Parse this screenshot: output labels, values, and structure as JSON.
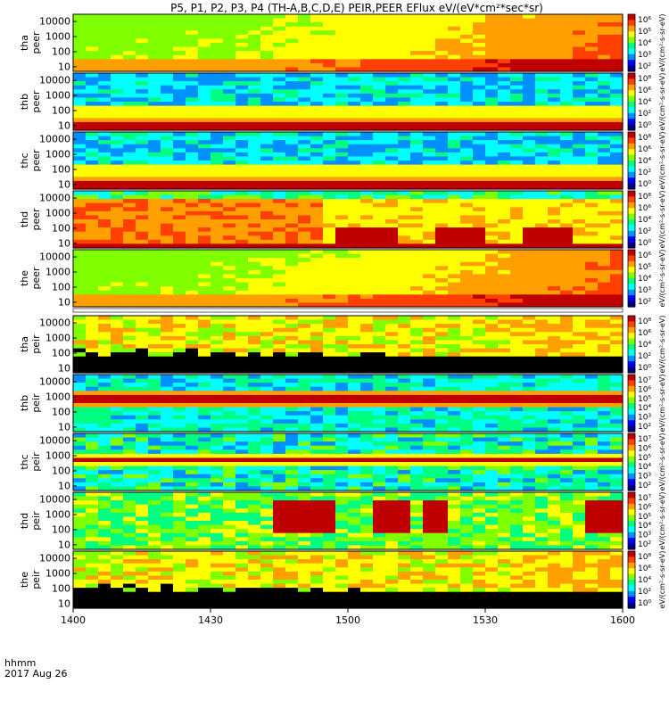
{
  "title": "P5, P1, P2, P3, P4 (TH-A,B,C,D,E) PEIR,PEER EFlux eV/(eV*cm²*sec*sr)",
  "colors": {
    "colormap": [
      "#000080",
      "#0000ff",
      "#0090ff",
      "#00ffff",
      "#00ff80",
      "#80ff00",
      "#ffff00",
      "#ffa000",
      "#ff4000",
      "#c00000"
    ],
    "background": "#ffffff",
    "frame": "#000000"
  },
  "chart_data": {
    "type": "heatmap",
    "title": "P5, P1, P2, P3, P4 (TH-A,B,C,D,E) PEIR,PEER EFlux eV/(eV*cm²*sec*sr)",
    "x_axis": {
      "ticks": [
        "1400",
        "1430",
        "1500",
        "1530",
        "1600"
      ],
      "label_line1": "hhmm",
      "label_line2": "2017 Aug 26",
      "range": [
        "14:00",
        "16:00"
      ]
    },
    "y_axis": {
      "scale": "log",
      "unit": "eV",
      "range": [
        5,
        30000
      ]
    },
    "colorbar_unit": "eV/(cm^2-s-sr-eV)",
    "panels": [
      {
        "id": "tha-peer",
        "line1": "tha",
        "line2": "peer",
        "ticks": [
          "10000",
          "1000",
          "100",
          "10"
        ],
        "cbar_ticks": [
          "10⁶",
          "10⁵",
          "10⁴",
          "10³",
          "10²"
        ],
        "cbar_range": [
          2,
          6.5
        ],
        "cbar_label": "eV/(cm²-s-sr-eV)",
        "style": "ecool"
      },
      {
        "id": "thb-peer",
        "line1": "thb",
        "line2": "peer",
        "ticks": [
          "10000",
          "1000",
          "100",
          "10"
        ],
        "cbar_ticks": [
          "10⁸",
          "10⁶",
          "10⁴",
          "10²",
          "10⁰"
        ],
        "cbar_range": [
          0,
          8
        ],
        "cbar_label": "eV/(cm²-s-sr-eV)",
        "style": "eband"
      },
      {
        "id": "thc-peer",
        "line1": "thc",
        "line2": "peer",
        "ticks": [
          "10000",
          "1000",
          "100",
          "10"
        ],
        "cbar_ticks": [
          "10⁸",
          "10⁶",
          "10⁴",
          "10²",
          "10⁰"
        ],
        "cbar_range": [
          0,
          8
        ],
        "cbar_label": "eV/(cm²-s-sr-eV)",
        "style": "eband"
      },
      {
        "id": "thd-peer",
        "line1": "thd",
        "line2": "peer",
        "ticks": [
          "10000",
          "1000",
          "100",
          "10"
        ],
        "cbar_ticks": [
          "10⁸",
          "10⁶",
          "10⁴",
          "10²",
          "10⁰"
        ],
        "cbar_range": [
          0,
          8
        ],
        "cbar_label": "eV/(cm²-s-sr-eV)",
        "style": "epatch"
      },
      {
        "id": "the-peer",
        "line1": "the",
        "line2": "peer",
        "ticks": [
          "10000",
          "1000",
          "100",
          "10"
        ],
        "cbar_ticks": [
          "10⁶",
          "10⁵",
          "10⁴",
          "10³",
          "10²"
        ],
        "cbar_range": [
          2,
          6.5
        ],
        "cbar_label": "eV/(cm²-s-sr-eV)",
        "style": "ecool"
      },
      {
        "id": "tha-peir",
        "line1": "tha",
        "line2": "peir",
        "ticks": [
          "10000",
          "1000",
          "100",
          "10"
        ],
        "cbar_ticks": [
          "10⁸",
          "10⁶",
          "10⁴",
          "10²",
          "10⁰"
        ],
        "cbar_range": [
          0,
          8
        ],
        "cbar_label": "eV/(cm²-s-sr-eV)",
        "style": "inoise"
      },
      {
        "id": "thb-peir",
        "line1": "thb",
        "line2": "peir",
        "ticks": [
          "10000",
          "1000",
          "100",
          "10"
        ],
        "cbar_ticks": [
          "10⁷",
          "10⁶",
          "10⁵",
          "10⁴",
          "10³",
          "10²"
        ],
        "cbar_range": [
          1.5,
          7.5
        ],
        "cbar_label": "eV/(cm²-s-sr-eV)",
        "style": "iband"
      },
      {
        "id": "thc-peir",
        "line1": "thc",
        "line2": "peir",
        "ticks": [
          "10000",
          "1000",
          "100",
          "10"
        ],
        "cbar_ticks": [
          "10⁷",
          "10⁶",
          "10⁵",
          "10⁴",
          "10³",
          "10²"
        ],
        "cbar_range": [
          1.5,
          7.5
        ],
        "cbar_label": "eV/(cm²-s-sr-eV)",
        "style": "iband2"
      },
      {
        "id": "thd-peir",
        "line1": "thd",
        "line2": "peir",
        "ticks": [
          "10000",
          "1000",
          "100",
          "10"
        ],
        "cbar_ticks": [
          "10⁷",
          "10⁶",
          "10⁵",
          "10⁴",
          "10³",
          "10²"
        ],
        "cbar_range": [
          1.5,
          7.5
        ],
        "cbar_label": "eV/(cm²-s-sr-eV)",
        "style": "ipatch"
      },
      {
        "id": "the-peir",
        "line1": "the",
        "line2": "peir",
        "ticks": [
          "10000",
          "1000",
          "100",
          "10"
        ],
        "cbar_ticks": [
          "10⁸",
          "10⁶",
          "10⁴",
          "10²",
          "10⁰"
        ],
        "cbar_range": [
          0,
          8
        ],
        "cbar_label": "eV/(cm²-s-sr-eV)",
        "style": "inoise"
      }
    ]
  }
}
